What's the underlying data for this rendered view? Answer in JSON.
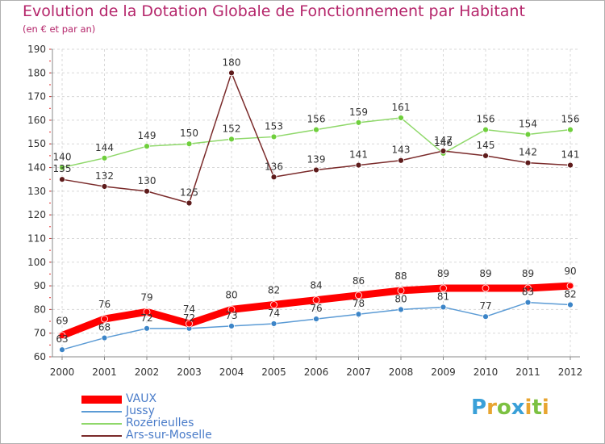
{
  "chart_data": {
    "type": "line",
    "title": "Evolution de la Dotation Globale de Fonctionnement par Habitant",
    "subtitle": "(en € et par an)",
    "x": [
      "2000",
      "2001",
      "2002",
      "2003",
      "2004",
      "2005",
      "2006",
      "2007",
      "2008",
      "2009",
      "2010",
      "2011",
      "2012"
    ],
    "ylim": [
      60,
      190
    ],
    "yticks": [
      60,
      70,
      80,
      90,
      100,
      110,
      120,
      130,
      140,
      150,
      160,
      170,
      180,
      190
    ],
    "grid": true,
    "legend_position": "bottom-left",
    "series": [
      {
        "name": "VAUX",
        "color": "#ff0000",
        "values": [
          69,
          76,
          79,
          74,
          80,
          82,
          84,
          86,
          88,
          89,
          89,
          89,
          90
        ]
      },
      {
        "name": "Jussy",
        "color": "#5b9bd5",
        "values": [
          63,
          68,
          72,
          72,
          73,
          74,
          76,
          78,
          80,
          81,
          77,
          83,
          82
        ]
      },
      {
        "name": "Rozérieulles",
        "color": "#8fd86a",
        "values": [
          140,
          144,
          149,
          150,
          152,
          153,
          156,
          159,
          161,
          146,
          156,
          154,
          156
        ]
      },
      {
        "name": "Ars-sur-Moselle",
        "color": "#7a2a2a",
        "values": [
          135,
          132,
          130,
          125,
          180,
          136,
          139,
          141,
          143,
          147,
          145,
          142,
          141
        ]
      }
    ]
  },
  "logo": {
    "text": "Proxiti",
    "letters": [
      "P",
      "r",
      "o",
      "x",
      "i",
      "t",
      "i"
    ],
    "colors": [
      "#3aa0d8",
      "#e8a531",
      "#7cc142",
      "#3aa0d8",
      "#e8a531",
      "#7cc142",
      "#e8a531"
    ]
  }
}
